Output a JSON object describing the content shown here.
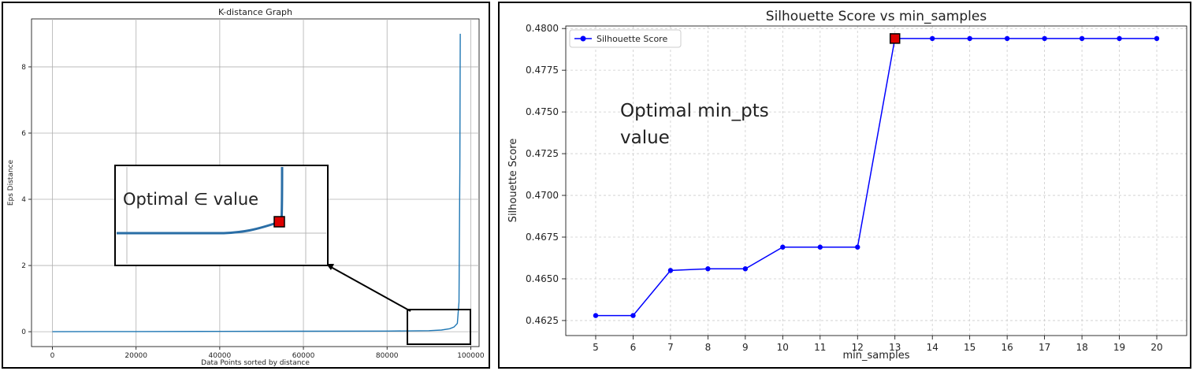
{
  "chart_data": [
    {
      "type": "line",
      "title": "K-distance Graph",
      "xlabel": "Data Points sorted by distance",
      "ylabel": "Eps Distance",
      "xlim": [
        -5000,
        102000
      ],
      "ylim": [
        -0.45,
        9.45
      ],
      "xticks": [
        0,
        20000,
        40000,
        60000,
        80000,
        100000
      ],
      "xtick_labels": [
        "0",
        "20000",
        "40000",
        "60000",
        "80000",
        "100000"
      ],
      "yticks": [
        0,
        2,
        4,
        6,
        8
      ],
      "ytick_labels": [
        "0",
        "2",
        "4",
        "6",
        "8"
      ],
      "grid": true,
      "line_color": "#1f77b4",
      "series": [
        {
          "x": [
            0,
            20000,
            40000,
            60000,
            80000,
            90000,
            93000,
            95000,
            96000,
            96800,
            97200,
            97400,
            97500
          ],
          "y": [
            0,
            0.005,
            0.01,
            0.015,
            0.02,
            0.03,
            0.05,
            0.09,
            0.14,
            0.25,
            0.9,
            5.0,
            9.0
          ]
        }
      ],
      "inset": {
        "annotation": "Optimal ∈ value",
        "annotation_color": "#ff0000",
        "marker_color": "#dd0000"
      }
    },
    {
      "type": "line",
      "title": "Silhouette Score vs min_samples",
      "xlabel": "min_samples",
      "ylabel": "Silhouette Score",
      "xlim": [
        4.2,
        20.8
      ],
      "ylim": [
        0.4616,
        0.48015
      ],
      "categories": [
        "5",
        "6",
        "7",
        "8",
        "9",
        "10",
        "11",
        "12",
        "13",
        "14",
        "15",
        "16",
        "17",
        "18",
        "19",
        "20"
      ],
      "x": [
        5,
        6,
        7,
        8,
        9,
        10,
        11,
        12,
        13,
        14,
        15,
        16,
        17,
        18,
        19,
        20
      ],
      "yticks": [
        0.4625,
        0.465,
        0.4675,
        0.47,
        0.4725,
        0.475,
        0.4775,
        0.48
      ],
      "ytick_labels": [
        "0.4625",
        "0.4650",
        "0.4675",
        "0.4700",
        "0.4725",
        "0.4750",
        "0.4775",
        "0.4800"
      ],
      "grid": true,
      "grid_style": "dashed",
      "legend_position": "top-left",
      "series": [
        {
          "name": "Silhouette Score",
          "color": "#0000ff",
          "values": [
            0.4628,
            0.4628,
            0.4655,
            0.4656,
            0.4656,
            0.4669,
            0.4669,
            0.4669,
            0.4794,
            0.4794,
            0.4794,
            0.4794,
            0.4794,
            0.4794,
            0.4794,
            0.4794
          ]
        }
      ],
      "annotation": {
        "lines": [
          "Optimal min_pts",
          "value"
        ],
        "color": "#ff0000",
        "marker_color": "#dd0000",
        "highlight_x": 13
      }
    }
  ]
}
